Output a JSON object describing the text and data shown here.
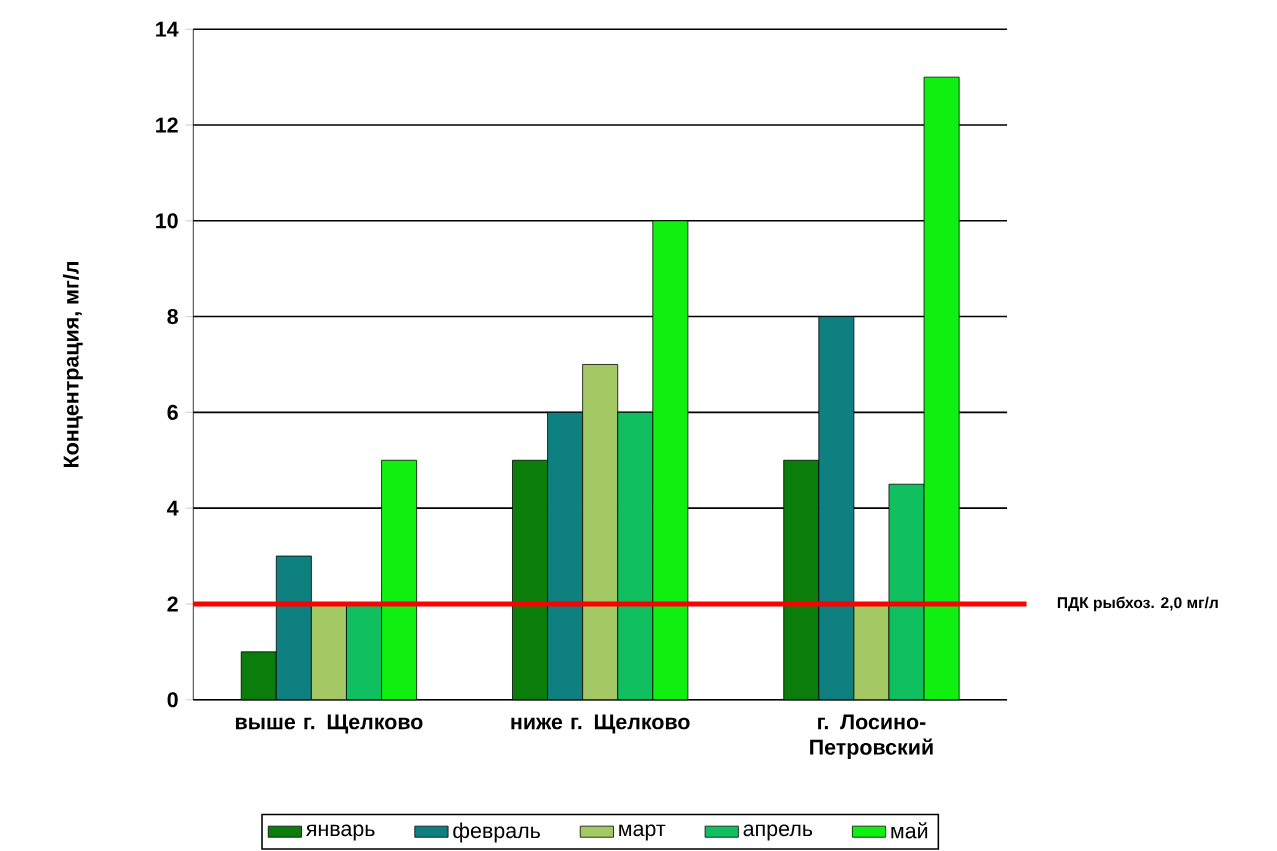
{
  "chart_data": {
    "type": "bar",
    "ylabel": "Концентрация, мг/л",
    "categories": [
      "выше г. Щелково",
      "ниже г. Щелково",
      "г. Лосино-Петровский"
    ],
    "series": [
      {
        "name": "январь",
        "color": "#0a7d0a",
        "values": [
          1,
          5,
          5
        ]
      },
      {
        "name": "февраль",
        "color": "#0f8080",
        "values": [
          3,
          6,
          8
        ]
      },
      {
        "name": "март",
        "color": "#a4c864",
        "values": [
          2,
          7,
          2
        ]
      },
      {
        "name": "апрель",
        "color": "#10c060",
        "values": [
          2,
          6,
          4.5
        ]
      },
      {
        "name": "май",
        "color": "#10f010",
        "values": [
          5,
          10,
          13
        ]
      }
    ],
    "ylim": [
      0,
      14
    ],
    "yticks": [
      0,
      2,
      4,
      6,
      8,
      10,
      12,
      14
    ],
    "grid": "y",
    "legend": "bottom",
    "ref_lines": [
      {
        "axis": "y",
        "value": 2,
        "label": "ПДК рыбхоз. 2,0 мг/л",
        "color": "#ff0000"
      }
    ]
  }
}
